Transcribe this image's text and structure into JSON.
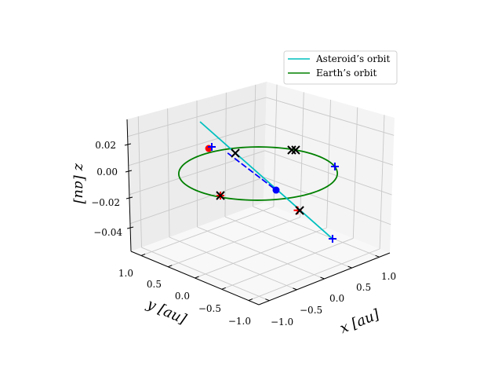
{
  "chart_data": {
    "type": "line",
    "projection": "3d",
    "title": "",
    "xlabel": "x [au]",
    "ylabel": "y [au]",
    "zlabel": "z [au]",
    "x_ticks": [
      "−1.0",
      "−0.5",
      "0.0",
      "0.5",
      "1.0"
    ],
    "y_ticks": [
      "1.0",
      "0.5",
      "0.0",
      "−0.5",
      "−1.0"
    ],
    "z_ticks": [
      "0.02",
      "0.00",
      "−0.02",
      "−0.04"
    ],
    "xlim": [
      -1.2,
      1.2
    ],
    "ylim": [
      -1.2,
      1.2
    ],
    "zlim": [
      -0.05,
      0.035
    ],
    "grid": true,
    "legend_placement": "top-right",
    "legend": [
      "Asteroid’s orbit",
      "Earth’s orbit"
    ],
    "colors": {
      "asteroid": "#00bfbf",
      "earth": "#008000",
      "blue": "#0000ff",
      "red": "#ff0000",
      "black": "#000000"
    },
    "series": [
      {
        "name": "Asteroid’s orbit",
        "color": "#00bfbf",
        "points": [
          [
            -0.207,
            0.832,
            0.03
          ],
          [
            0.517,
            -0.827,
            -0.045
          ]
        ]
      },
      {
        "name": "Earth’s orbit",
        "color": "#008000",
        "radius": 1.0,
        "z": 0.0
      }
    ],
    "asteroid_dashed_segment": {
      "color": "#0000ff",
      "points": [
        [
          0.27,
          0.82,
          0.0
        ],
        [
          0.078,
          -0.245,
          -0.01
        ]
      ]
    },
    "markers": [
      {
        "type": "dot",
        "color": "#ff0000",
        "xyz": [
          0.222,
          1.111,
          0.0
        ]
      },
      {
        "type": "dot",
        "color": "#0000ff",
        "xyz": [
          0.078,
          -0.245,
          -0.01
        ]
      },
      {
        "type": "plus",
        "color": "#0000ff",
        "xyz": [
          0.291,
          1.126,
          0.0
        ]
      },
      {
        "type": "plus",
        "color": "#0000ff",
        "xyz": [
          0.871,
          -0.496,
          0.0
        ]
      },
      {
        "type": "plus",
        "color": "#0000ff",
        "xyz": [
          0.53,
          -0.8,
          -0.045
        ]
      },
      {
        "type": "plus",
        "color": "#ff0000",
        "xyz": [
          -0.915,
          -0.252,
          0.0
        ]
      },
      {
        "type": "plus",
        "color": "#ff0000",
        "xyz": [
          0.09,
          -0.62,
          -0.02
        ]
      },
      {
        "type": "x",
        "color": "#000000",
        "xyz": [
          0.335,
          0.748,
          0.0
        ]
      },
      {
        "type": "x",
        "color": "#000000",
        "xyz": [
          0.921,
          0.329,
          0.0
        ]
      },
      {
        "type": "x",
        "color": "#000000",
        "xyz": [
          0.956,
          0.294,
          0.0
        ]
      },
      {
        "type": "x",
        "color": "#000000",
        "xyz": [
          -0.915,
          -0.252,
          0.0
        ]
      },
      {
        "type": "x",
        "color": "#000000",
        "xyz": [
          0.102,
          -0.644,
          -0.02
        ]
      }
    ]
  }
}
